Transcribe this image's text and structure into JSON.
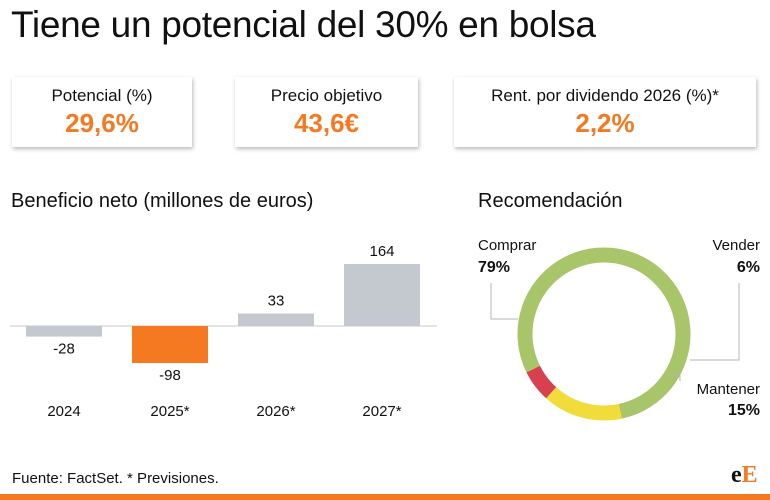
{
  "title": "Tiene un potencial del 30% en bolsa",
  "kpis": [
    {
      "label": "Potencial (%)",
      "value": "29,6%"
    },
    {
      "label": "Precio objetivo",
      "value": "43,6€"
    },
    {
      "label": "Rent. por dividendo 2026 (%)*",
      "value": "2,2%"
    }
  ],
  "colors": {
    "accent": "#f47920",
    "bar_default": "#c4c8cf",
    "comprar": "#a8c56a",
    "mantener": "#f1dc3c",
    "vender": "#d6404f"
  },
  "chart_data": [
    {
      "type": "bar",
      "title": "Beneficio neto (millones de euros)",
      "categories": [
        "2024",
        "2025*",
        "2026*",
        "2027*"
      ],
      "values": [
        -28,
        -98,
        33,
        164
      ],
      "value_labels": [
        "-28",
        "-98",
        "33",
        "164"
      ],
      "highlight_index": 1,
      "ylim": [
        -110,
        180
      ],
      "grid": false
    },
    {
      "type": "pie",
      "title": "Recomendación",
      "labels": [
        "Comprar",
        "Mantener",
        "Vender"
      ],
      "values": [
        79,
        15,
        6
      ],
      "value_labels": [
        "79%",
        "15%",
        "6%"
      ]
    }
  ],
  "footer": "Fuente: FactSet. * Previsiones.",
  "logo": {
    "part1": "e",
    "part2": "E"
  }
}
